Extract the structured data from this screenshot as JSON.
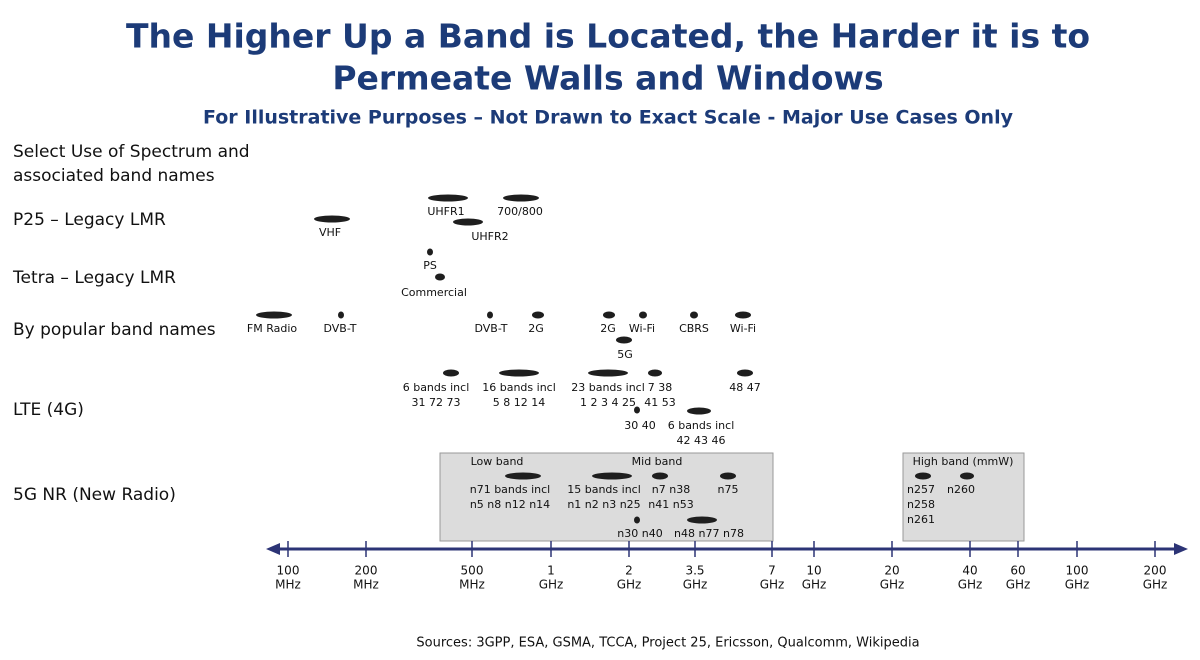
{
  "header": {
    "title_lines": [
      "The Higher Up a Band is Located, the Harder it is to",
      "Permeate Walls and Windows"
    ],
    "subtitle": "For Illustrative Purposes – Not Drawn to Exact Scale - Major Use Cases Only"
  },
  "left_header": [
    "Select Use of Spectrum and",
    "associated band names"
  ],
  "rows": [
    "P25 – Legacy LMR",
    "Tetra – Legacy LMR",
    "By popular band names",
    "LTE (4G)",
    "5G NR (New Radio)"
  ],
  "groups": [
    "Low band",
    "Mid band",
    "High band (mmW)"
  ],
  "bands": [
    {
      "lines": [
        "VHF"
      ]
    },
    {
      "lines": [
        "UHFR1"
      ]
    },
    {
      "lines": [
        "700/800"
      ]
    },
    {
      "lines": [
        "UHFR2"
      ]
    },
    {
      "lines": [
        "PS"
      ]
    },
    {
      "lines": [
        "Commercial"
      ]
    },
    {
      "lines": [
        "FM Radio"
      ]
    },
    {
      "lines": [
        "DVB-T"
      ]
    },
    {
      "lines": [
        "DVB-T"
      ]
    },
    {
      "lines": [
        "2G"
      ]
    },
    {
      "lines": [
        "2G"
      ]
    },
    {
      "lines": [
        "Wi-Fi"
      ]
    },
    {
      "lines": [
        "CBRS"
      ]
    },
    {
      "lines": [
        "Wi-Fi"
      ]
    },
    {
      "lines": [
        "5G"
      ]
    },
    {
      "lines": [
        "6 bands incl",
        "31 72 73"
      ]
    },
    {
      "lines": [
        "16 bands incl",
        "5 8 12 14"
      ]
    },
    {
      "lines": [
        "23 bands incl",
        "1 2 3 4 25"
      ]
    },
    {
      "lines": [
        "7 38",
        "41 53"
      ]
    },
    {
      "lines": [
        "48 47"
      ]
    },
    {
      "lines": [
        "30 40"
      ]
    },
    {
      "lines": [
        "6 bands incl",
        "42 43 46"
      ]
    },
    {
      "lines": [
        "n71 bands incl",
        "n5 n8 n12 n14"
      ]
    },
    {
      "lines": [
        "15 bands incl",
        "n1 n2 n3 n25"
      ]
    },
    {
      "lines": [
        "n7 n38",
        "n41 n53"
      ]
    },
    {
      "lines": [
        "n75"
      ]
    },
    {
      "lines": [
        "n30 n40"
      ]
    },
    {
      "lines": [
        "n48 n77 n78"
      ]
    },
    {
      "lines": [
        "n257",
        "n258",
        "n261"
      ]
    },
    {
      "lines": [
        "n260"
      ]
    }
  ],
  "axis_labels": [
    [
      "100",
      "MHz"
    ],
    [
      "200",
      "MHz"
    ],
    [
      "500",
      "MHz"
    ],
    [
      "1",
      "GHz"
    ],
    [
      "2",
      "GHz"
    ],
    [
      "3.5",
      "GHz"
    ],
    [
      "7",
      "GHz"
    ],
    [
      "10",
      "GHz"
    ],
    [
      "20",
      "GHz"
    ],
    [
      "40",
      "GHz"
    ],
    [
      "60",
      "GHz"
    ],
    [
      "100",
      "GHz"
    ],
    [
      "200",
      "GHz"
    ]
  ],
  "source": "Sources: 3GPP, ESA, GSMA, TCCA, Project 25, Ericsson, Qualcomm, Wikipedia"
}
